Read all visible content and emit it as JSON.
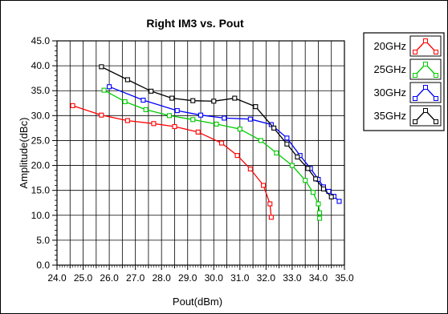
{
  "chart_data": {
    "type": "line",
    "title": "Right IM3 vs. Pout",
    "xlabel": "Pout(dBm)",
    "ylabel": "Amplitude(dBc)",
    "xlim": [
      24.0,
      35.0
    ],
    "ylim": [
      0.0,
      45.0
    ],
    "x_ticks": [
      "24.0",
      "24.5",
      "25.0",
      "25.5",
      "26.0",
      "26.5",
      "27.0",
      "27.5",
      "28.0",
      "28.5",
      "29.0",
      "29.5",
      "30.0",
      "30.5",
      "31.0",
      "31.5",
      "32.0",
      "32.5",
      "33.0",
      "33.5",
      "34.0",
      "34.5",
      "35.0"
    ],
    "y_ticks": [
      "0.0",
      "5.0",
      "10.0",
      "15.0",
      "20.0",
      "25.0",
      "30.0",
      "35.0",
      "40.0",
      "45.0"
    ],
    "x_tick_labels_shown": [
      "24.0",
      "25.0",
      "26.0",
      "27.0",
      "28.0",
      "29.0",
      "30.0",
      "31.0",
      "32.0",
      "33.0",
      "34.0",
      "35.0"
    ],
    "grid": true,
    "legend_position": "right",
    "series": [
      {
        "name": "20GHz",
        "color": "#ff0000",
        "x": [
          24.6,
          25.7,
          26.7,
          27.7,
          28.5,
          29.4,
          30.3,
          30.9,
          31.4,
          31.9,
          32.15,
          32.2
        ],
        "y": [
          32.0,
          30.1,
          29.0,
          28.4,
          27.8,
          26.7,
          24.5,
          22.0,
          19.3,
          16.0,
          12.3,
          9.6
        ]
      },
      {
        "name": "25GHz",
        "color": "#00cc00",
        "x": [
          25.8,
          26.6,
          27.4,
          28.3,
          29.2,
          30.1,
          31.0,
          31.8,
          32.4,
          33.0,
          33.5,
          33.8,
          34.0,
          34.05,
          34.05
        ],
        "y": [
          35.1,
          32.8,
          31.2,
          30.0,
          29.2,
          28.3,
          27.3,
          25.0,
          22.5,
          20.0,
          17.0,
          14.6,
          12.3,
          10.5,
          9.4
        ]
      },
      {
        "name": "30GHz",
        "color": "#0000ff",
        "x": [
          26.0,
          27.3,
          28.6,
          29.5,
          30.4,
          31.4,
          32.2,
          32.8,
          33.3,
          33.7,
          34.0,
          34.2,
          34.4,
          34.6,
          34.8
        ],
        "y": [
          35.8,
          33.1,
          31.0,
          30.1,
          29.5,
          29.3,
          28.2,
          25.5,
          22.0,
          19.4,
          17.2,
          15.7,
          14.8,
          13.8,
          12.8
        ]
      },
      {
        "name": "35GHz",
        "color": "#000000",
        "x": [
          25.7,
          26.7,
          27.6,
          28.4,
          29.2,
          30.0,
          30.8,
          31.6,
          32.3,
          32.8,
          33.2,
          33.6,
          33.9,
          34.2,
          34.5
        ],
        "y": [
          39.8,
          37.2,
          34.9,
          33.5,
          33.0,
          32.9,
          33.5,
          31.8,
          27.5,
          24.3,
          21.7,
          19.4,
          17.3,
          15.3,
          13.7
        ]
      }
    ]
  }
}
